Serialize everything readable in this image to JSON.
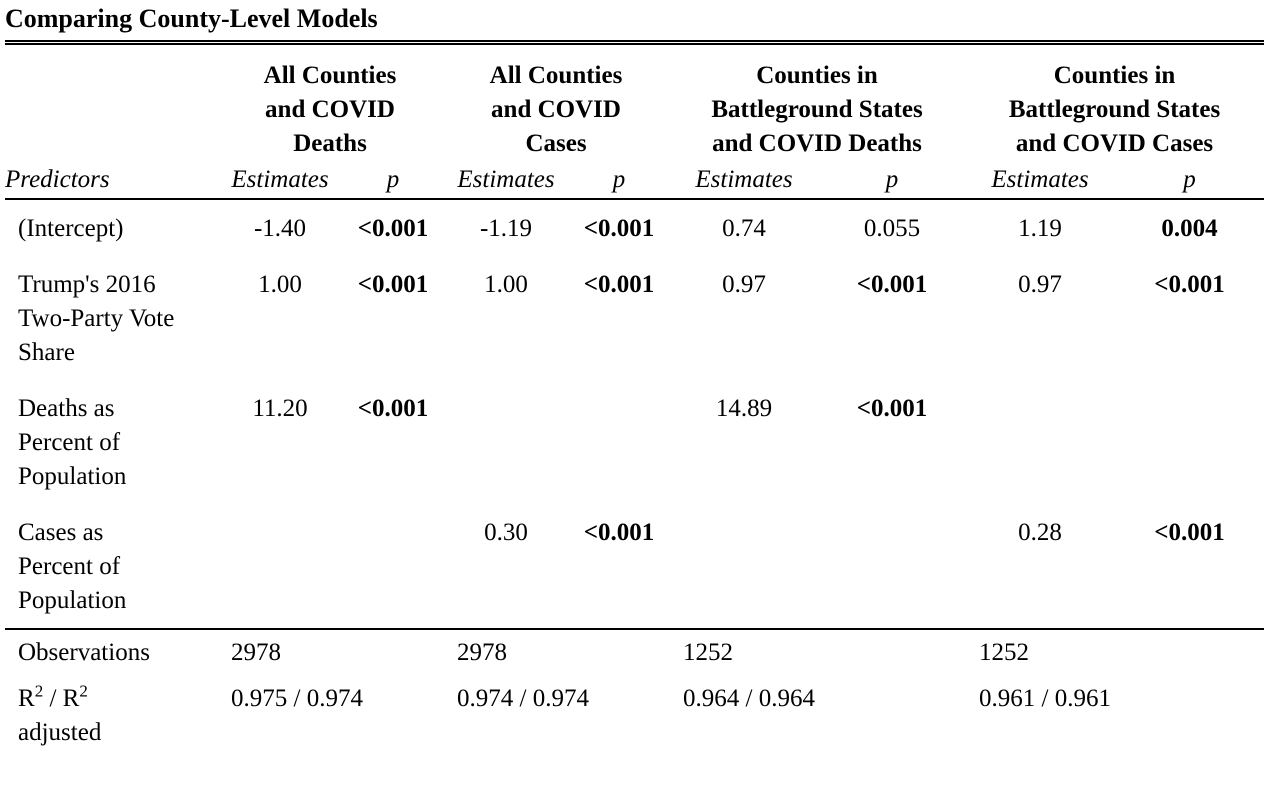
{
  "caption": "Comparing County-Level Models",
  "models": [
    {
      "title_lines": [
        "All Counties",
        "and COVID",
        "Deaths"
      ]
    },
    {
      "title_lines": [
        "All Counties",
        "and COVID",
        "Cases"
      ]
    },
    {
      "title_lines": [
        "Counties in",
        "Battleground States",
        "and COVID Deaths"
      ]
    },
    {
      "title_lines": [
        "Counties in",
        "Battleground States",
        "and COVID Cases"
      ]
    }
  ],
  "subheaders": {
    "predictors": "Predictors",
    "estimates": "Estimates",
    "p": "p"
  },
  "rows": [
    {
      "predictor_lines": [
        "(Intercept)"
      ],
      "cells": [
        {
          "est": "-1.40",
          "p": "<0.001",
          "p_bold": true
        },
        {
          "est": "-1.19",
          "p": "<0.001",
          "p_bold": true
        },
        {
          "est": "0.74",
          "p": "0.055",
          "p_bold": false
        },
        {
          "est": "1.19",
          "p": "0.004",
          "p_bold": true
        }
      ]
    },
    {
      "predictor_lines": [
        "Trump's 2016",
        "Two-Party Vote",
        "Share"
      ],
      "cells": [
        {
          "est": "1.00",
          "p": "<0.001",
          "p_bold": true
        },
        {
          "est": "1.00",
          "p": "<0.001",
          "p_bold": true
        },
        {
          "est": "0.97",
          "p": "<0.001",
          "p_bold": true
        },
        {
          "est": "0.97",
          "p": "<0.001",
          "p_bold": true
        }
      ]
    },
    {
      "predictor_lines": [
        "Deaths as",
        "Percent of",
        "Population"
      ],
      "cells": [
        {
          "est": "11.20",
          "p": "<0.001",
          "p_bold": true
        },
        {
          "est": "",
          "p": "",
          "p_bold": false
        },
        {
          "est": "14.89",
          "p": "<0.001",
          "p_bold": true
        },
        {
          "est": "",
          "p": "",
          "p_bold": false
        }
      ]
    },
    {
      "predictor_lines": [
        "Cases as",
        "Percent of",
        "Population"
      ],
      "cells": [
        {
          "est": "",
          "p": "",
          "p_bold": false
        },
        {
          "est": "0.30",
          "p": "<0.001",
          "p_bold": true
        },
        {
          "est": "",
          "p": "",
          "p_bold": false
        },
        {
          "est": "0.28",
          "p": "<0.001",
          "p_bold": true
        }
      ]
    }
  ],
  "observations": {
    "label": "Observations",
    "values": [
      "2978",
      "2978",
      "1252",
      "1252"
    ]
  },
  "r2": {
    "label_r": "R",
    "label_sup": "2",
    "label_sep": " / R",
    "label_sup2": "2",
    "label_adj": "adjusted",
    "values": [
      "0.975 / 0.974",
      "0.974 / 0.974",
      "0.964 / 0.964",
      "0.961 / 0.961"
    ]
  }
}
